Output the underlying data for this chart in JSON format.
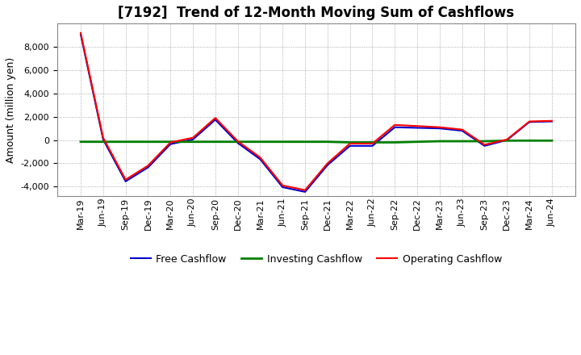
{
  "title": "[7192]  Trend of 12-Month Moving Sum of Cashflows",
  "ylabel": "Amount (million yen)",
  "x_labels": [
    "Mar-19",
    "Jun-19",
    "Sep-19",
    "Dec-19",
    "Mar-20",
    "Jun-20",
    "Sep-20",
    "Dec-20",
    "Mar-21",
    "Jun-21",
    "Sep-21",
    "Dec-21",
    "Mar-22",
    "Jun-22",
    "Sep-22",
    "Dec-22",
    "Mar-23",
    "Jun-23",
    "Sep-23",
    "Dec-23",
    "Mar-24",
    "Jun-24"
  ],
  "operating": [
    9200,
    200,
    -3400,
    -2200,
    -200,
    200,
    1900,
    -100,
    -1500,
    -3900,
    -4300,
    -2000,
    -300,
    -300,
    1300,
    1200,
    1100,
    900,
    -400,
    50,
    1600,
    1650
  ],
  "investing": [
    -150,
    -150,
    -150,
    -150,
    -150,
    -150,
    -150,
    -150,
    -150,
    -150,
    -150,
    -150,
    -200,
    -200,
    -200,
    -150,
    -100,
    -100,
    -100,
    -50,
    -50,
    -50
  ],
  "free": [
    9050,
    50,
    -3550,
    -2350,
    -350,
    50,
    1750,
    -250,
    -1650,
    -4050,
    -4450,
    -2150,
    -500,
    -500,
    1100,
    1050,
    1000,
    800,
    -500,
    0,
    1550,
    1600
  ],
  "operating_color": "#FF0000",
  "investing_color": "#008000",
  "free_color": "#0000CC",
  "ylim": [
    -4800,
    10000
  ],
  "yticks": [
    -4000,
    -2000,
    0,
    2000,
    4000,
    6000,
    8000
  ],
  "background_color": "#FFFFFF",
  "plot_bg_color": "#FFFFFF",
  "grid_color": "#999999",
  "linewidth": 1.5,
  "title_fontsize": 12,
  "legend_fontsize": 9,
  "tick_fontsize": 8,
  "ylabel_fontsize": 9
}
